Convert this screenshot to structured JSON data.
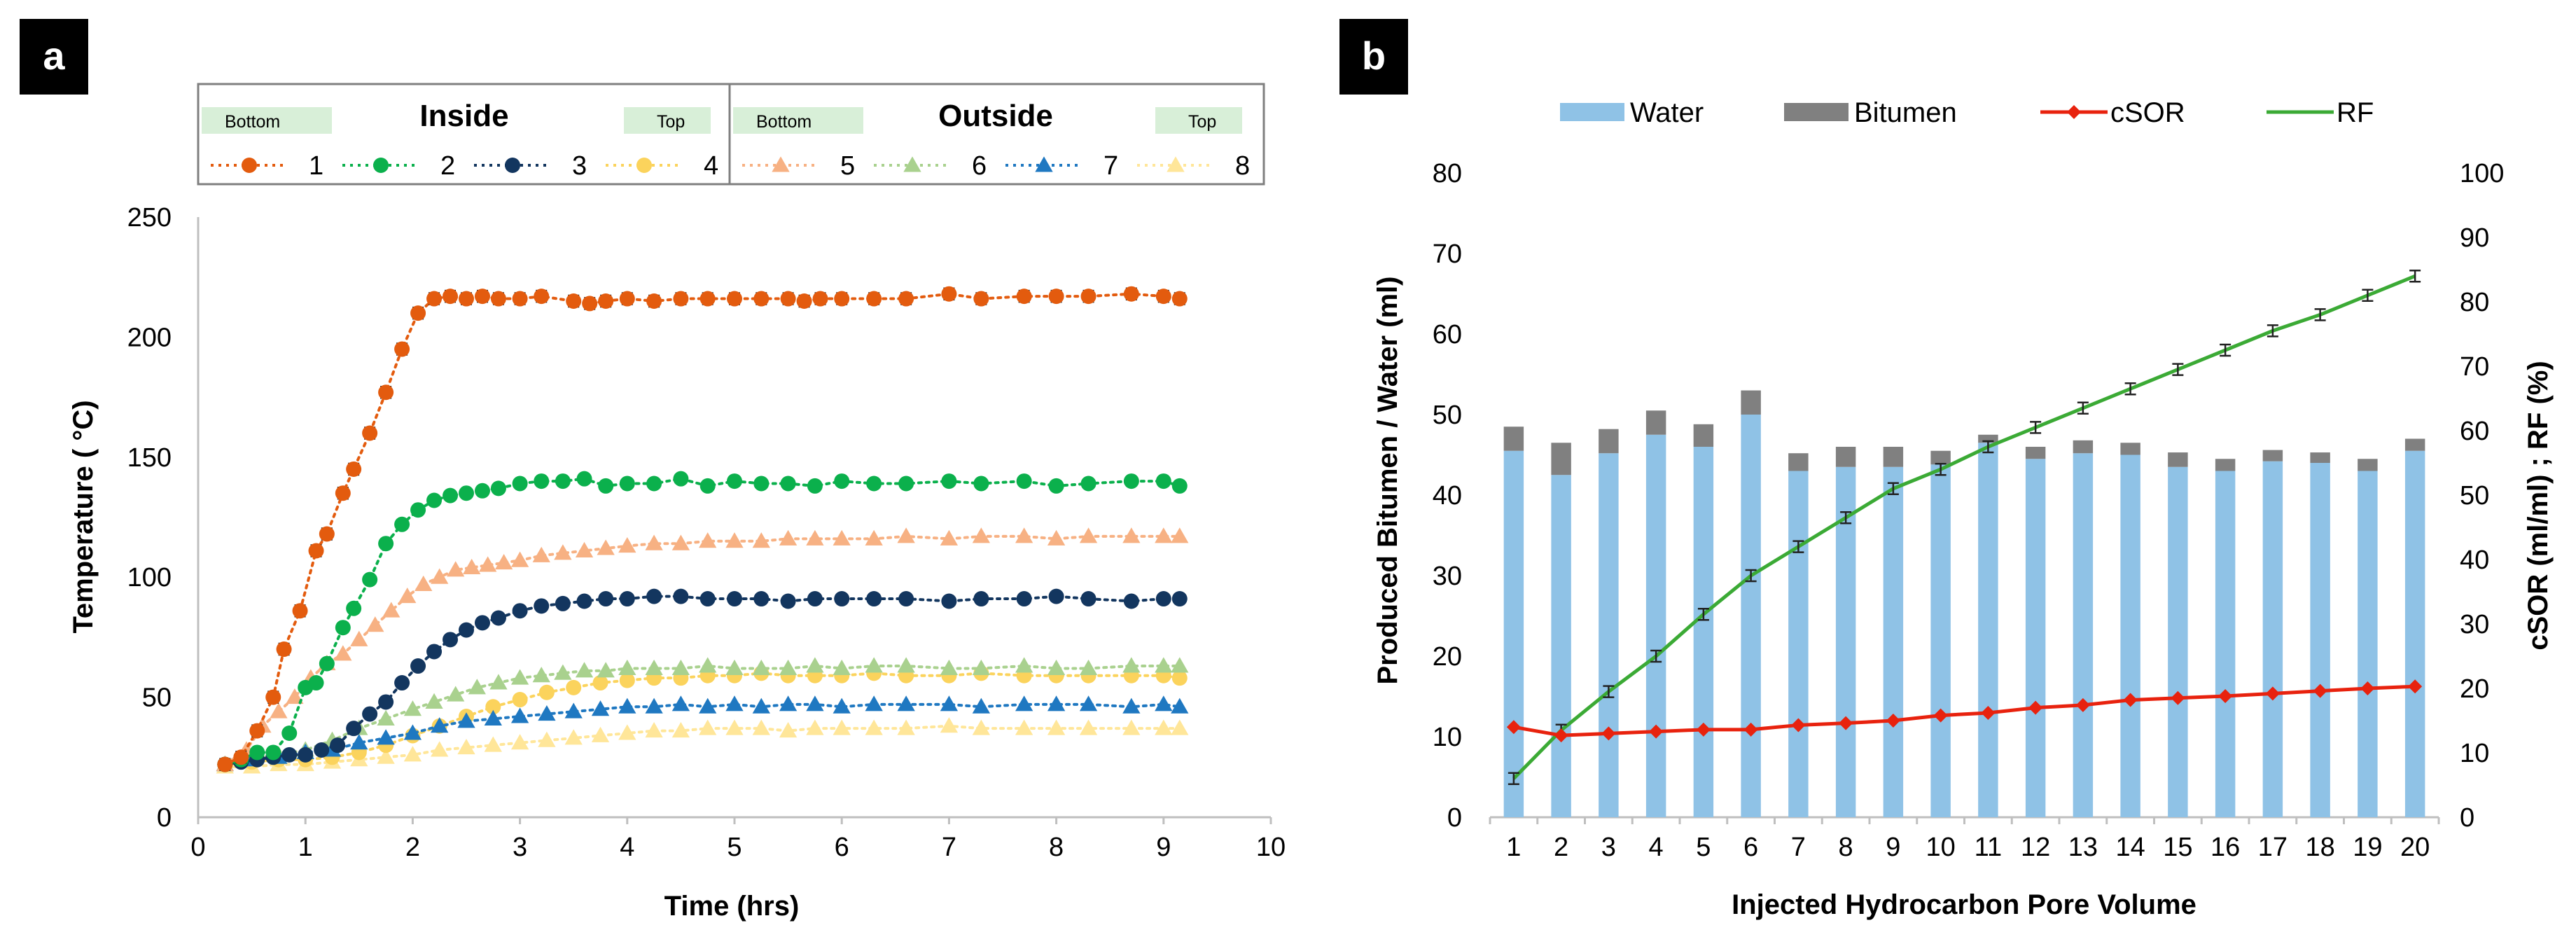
{
  "panels": [
    {
      "id": "a",
      "label": "a",
      "chart_data": {
        "type": "line",
        "xlabel": "Time (hrs)",
        "ylabel": "Temperature ( °C)",
        "xlim": [
          0,
          10
        ],
        "ylim": [
          0,
          250
        ],
        "xticks": [
          0,
          1,
          2,
          3,
          4,
          5,
          6,
          7,
          8,
          9,
          10
        ],
        "yticks": [
          0,
          50,
          100,
          150,
          200,
          250
        ],
        "grid": false,
        "legend": {
          "groups": [
            {
              "title": "Inside",
              "left_label": "Bottom",
              "right_label": "Top",
              "series_names": [
                "1",
                "2",
                "3",
                "4"
              ]
            },
            {
              "title": "Outside",
              "left_label": "Bottom",
              "right_label": "Top",
              "series_names": [
                "5",
                "6",
                "7",
                "8"
              ]
            }
          ]
        },
        "series": [
          {
            "name": "1",
            "marker": "circle",
            "color": "#E35B0E",
            "errorbars": true,
            "x": [
              0.25,
              0.4,
              0.55,
              0.7,
              0.8,
              0.95,
              1.1,
              1.2,
              1.35,
              1.45,
              1.6,
              1.75,
              1.9,
              2.05,
              2.2,
              2.35,
              2.5,
              2.65,
              2.8,
              3.0,
              3.2,
              3.5,
              3.65,
              3.8,
              4.0,
              4.25,
              4.5,
              4.75,
              5.0,
              5.25,
              5.5,
              5.65,
              5.8,
              6.0,
              6.3,
              6.6,
              7.0,
              7.3,
              7.7,
              8.0,
              8.3,
              8.7,
              9.0,
              9.15
            ],
            "y": [
              22,
              25,
              36,
              50,
              70,
              86,
              111,
              118,
              135,
              145,
              160,
              177,
              195,
              210,
              216,
              217,
              216,
              217,
              216,
              216,
              217,
              215,
              214,
              215,
              216,
              215,
              216,
              216,
              216,
              216,
              216,
              215,
              216,
              216,
              216,
              216,
              218,
              216,
              217,
              217,
              217,
              218,
              217,
              216
            ]
          },
          {
            "name": "2",
            "marker": "circle",
            "color": "#0BB04C",
            "errorbars": false,
            "x": [
              0.25,
              0.4,
              0.55,
              0.7,
              0.85,
              1.0,
              1.1,
              1.2,
              1.35,
              1.45,
              1.6,
              1.75,
              1.9,
              2.05,
              2.2,
              2.35,
              2.5,
              2.65,
              2.8,
              3.0,
              3.2,
              3.4,
              3.6,
              3.8,
              4.0,
              4.25,
              4.5,
              4.75,
              5.0,
              5.25,
              5.5,
              5.75,
              6.0,
              6.3,
              6.6,
              7.0,
              7.3,
              7.7,
              8.0,
              8.3,
              8.7,
              9.0,
              9.15
            ],
            "y": [
              22,
              24,
              27,
              27,
              35,
              54,
              56,
              64,
              79,
              87,
              99,
              114,
              122,
              128,
              132,
              134,
              135,
              136,
              137,
              139,
              140,
              140,
              141,
              138,
              139,
              139,
              141,
              138,
              140,
              139,
              139,
              138,
              140,
              139,
              139,
              140,
              139,
              140,
              138,
              139,
              140,
              140,
              138
            ]
          },
          {
            "name": "3",
            "marker": "circle",
            "color": "#13365F",
            "errorbars": false,
            "x": [
              0.25,
              0.4,
              0.55,
              0.7,
              0.85,
              1.0,
              1.15,
              1.3,
              1.45,
              1.6,
              1.75,
              1.9,
              2.05,
              2.2,
              2.35,
              2.5,
              2.65,
              2.8,
              3.0,
              3.2,
              3.4,
              3.6,
              3.8,
              4.0,
              4.25,
              4.5,
              4.75,
              5.0,
              5.25,
              5.5,
              5.75,
              6.0,
              6.3,
              6.6,
              7.0,
              7.3,
              7.7,
              8.0,
              8.3,
              8.7,
              9.0,
              9.15
            ],
            "y": [
              22,
              23,
              24,
              25,
              26,
              26,
              28,
              30,
              37,
              43,
              48,
              56,
              63,
              69,
              74,
              78,
              81,
              83,
              86,
              88,
              89,
              90,
              91,
              91,
              92,
              92,
              91,
              91,
              91,
              90,
              91,
              91,
              91,
              91,
              90,
              91,
              91,
              92,
              91,
              90,
              91,
              91
            ]
          },
          {
            "name": "4",
            "marker": "circle",
            "color": "#FBD35C",
            "errorbars": false,
            "x": [
              0.25,
              0.5,
              0.75,
              1.0,
              1.25,
              1.5,
              1.75,
              2.0,
              2.25,
              2.5,
              2.75,
              3.0,
              3.25,
              3.5,
              3.75,
              4.0,
              4.25,
              4.5,
              4.75,
              5.0,
              5.25,
              5.5,
              5.75,
              6.0,
              6.3,
              6.6,
              7.0,
              7.3,
              7.7,
              8.0,
              8.3,
              8.7,
              9.0,
              9.15
            ],
            "y": [
              22,
              23,
              24,
              24,
              25,
              27,
              30,
              34,
              38,
              42,
              46,
              49,
              52,
              54,
              56,
              57,
              58,
              58,
              59,
              59,
              60,
              59,
              59,
              59,
              60,
              59,
              59,
              60,
              59,
              59,
              59,
              59,
              59,
              58
            ]
          },
          {
            "name": "5",
            "marker": "triangle",
            "color": "#F7B183",
            "errorbars": false,
            "x": [
              0.25,
              0.45,
              0.6,
              0.75,
              0.9,
              1.05,
              1.2,
              1.35,
              1.5,
              1.65,
              1.8,
              1.95,
              2.1,
              2.25,
              2.4,
              2.55,
              2.7,
              2.85,
              3.0,
              3.2,
              3.4,
              3.6,
              3.8,
              4.0,
              4.25,
              4.5,
              4.75,
              5.0,
              5.25,
              5.5,
              5.75,
              6.0,
              6.3,
              6.6,
              7.0,
              7.3,
              7.7,
              8.0,
              8.3,
              8.7,
              9.0,
              9.15
            ],
            "y": [
              22,
              28,
              38,
              44,
              50,
              58,
              64,
              68,
              74,
              80,
              86,
              92,
              97,
              100,
              103,
              104,
              105,
              106,
              107,
              109,
              110,
              111,
              112,
              113,
              114,
              114,
              115,
              115,
              115,
              116,
              116,
              116,
              116,
              117,
              116,
              117,
              117,
              116,
              117,
              117,
              117,
              117
            ]
          },
          {
            "name": "6",
            "marker": "triangle",
            "color": "#A9D18E",
            "errorbars": false,
            "x": [
              0.25,
              0.5,
              0.75,
              1.0,
              1.25,
              1.5,
              1.75,
              2.0,
              2.2,
              2.4,
              2.6,
              2.8,
              3.0,
              3.2,
              3.4,
              3.6,
              3.8,
              4.0,
              4.25,
              4.5,
              4.75,
              5.0,
              5.25,
              5.5,
              5.75,
              6.0,
              6.3,
              6.6,
              7.0,
              7.3,
              7.7,
              8.0,
              8.3,
              8.7,
              9.0,
              9.15
            ],
            "y": [
              22,
              24,
              26,
              28,
              32,
              37,
              41,
              45,
              48,
              51,
              54,
              56,
              58,
              59,
              60,
              61,
              61,
              62,
              62,
              62,
              63,
              62,
              62,
              62,
              63,
              62,
              63,
              63,
              62,
              62,
              63,
              62,
              62,
              63,
              63,
              63
            ]
          },
          {
            "name": "7",
            "marker": "triangle",
            "color": "#1F78C1",
            "errorbars": false,
            "x": [
              0.25,
              0.5,
              0.75,
              1.0,
              1.25,
              1.5,
              1.75,
              2.0,
              2.25,
              2.5,
              2.75,
              3.0,
              3.25,
              3.5,
              3.75,
              4.0,
              4.25,
              4.5,
              4.75,
              5.0,
              5.25,
              5.5,
              5.75,
              6.0,
              6.3,
              6.6,
              7.0,
              7.3,
              7.7,
              8.0,
              8.3,
              8.7,
              9.0,
              9.15
            ],
            "y": [
              22,
              24,
              25,
              27,
              28,
              31,
              33,
              35,
              38,
              40,
              41,
              42,
              43,
              44,
              45,
              46,
              46,
              47,
              46,
              47,
              46,
              47,
              47,
              46,
              47,
              47,
              47,
              46,
              47,
              47,
              47,
              46,
              47,
              46
            ]
          },
          {
            "name": "8",
            "marker": "triangle",
            "color": "#FFE699",
            "errorbars": false,
            "x": [
              0.25,
              0.5,
              0.75,
              1.0,
              1.25,
              1.5,
              1.75,
              2.0,
              2.25,
              2.5,
              2.75,
              3.0,
              3.25,
              3.5,
              3.75,
              4.0,
              4.25,
              4.5,
              4.75,
              5.0,
              5.25,
              5.5,
              5.75,
              6.0,
              6.3,
              6.6,
              7.0,
              7.3,
              7.7,
              8.0,
              8.3,
              8.7,
              9.0,
              9.15
            ],
            "y": [
              21,
              21,
              22,
              22,
              23,
              24,
              25,
              26,
              28,
              29,
              30,
              31,
              32,
              33,
              34,
              35,
              36,
              36,
              37,
              37,
              37,
              36,
              37,
              37,
              37,
              37,
              38,
              37,
              37,
              37,
              37,
              37,
              37,
              37
            ]
          }
        ]
      }
    },
    {
      "id": "b",
      "label": "b",
      "chart_data": {
        "type": "bar",
        "xlabel": "Injected  Hydrocarbon  Pore Volume",
        "ylabel": "Produced Bitumen / Water  (ml)",
        "ylabel_right": "cSOR  (ml/ml) ;  RF  (%)",
        "ylim": [
          0,
          80
        ],
        "ylim_right": [
          0,
          100
        ],
        "yticks": [
          0,
          10,
          20,
          30,
          40,
          50,
          60,
          70,
          80
        ],
        "yticks_right": [
          0,
          10,
          20,
          30,
          40,
          50,
          60,
          70,
          80,
          90,
          100
        ],
        "grid": false,
        "legend_position": "top",
        "categories": [
          "1",
          "2",
          "3",
          "4",
          "5",
          "6",
          "7",
          "8",
          "9",
          "10",
          "11",
          "12",
          "13",
          "14",
          "15",
          "16",
          "17",
          "18",
          "19",
          "20"
        ],
        "series": [
          {
            "name": "Water",
            "kind": "bar-stacked",
            "axis": "left",
            "color": "#8FC2E6",
            "values": [
              45.5,
              42.5,
              45.2,
              47.5,
              46.0,
              50.0,
              43.0,
              43.5,
              43.5,
              43.8,
              46.5,
              44.5,
              45.2,
              45.0,
              43.5,
              43.0,
              44.2,
              44.0,
              43.0,
              45.5
            ]
          },
          {
            "name": "Bitumen",
            "kind": "bar-stacked",
            "axis": "left",
            "color": "#808080",
            "values": [
              3.0,
              4.0,
              3.0,
              3.0,
              2.8,
              3.0,
              2.2,
              2.5,
              2.5,
              1.7,
              1.0,
              1.5,
              1.6,
              1.5,
              1.8,
              1.5,
              1.4,
              1.3,
              1.5,
              1.5
            ]
          },
          {
            "name": "cSOR",
            "kind": "line",
            "axis": "right",
            "color": "#E8220E",
            "marker": "diamond",
            "values": [
              14,
              12.7,
              13,
              13.3,
              13.6,
              13.6,
              14.3,
              14.6,
              15,
              15.8,
              16.2,
              17,
              17.4,
              18.2,
              18.5,
              18.8,
              19.2,
              19.6,
              20,
              20.3
            ]
          },
          {
            "name": "RF",
            "kind": "line",
            "axis": "right",
            "color": "#3BAA35",
            "errorbars": true,
            "values": [
              6,
              13.5,
              19.5,
              25,
              31.5,
              37.5,
              42,
              46.5,
              51,
              54,
              57.5,
              60.5,
              63.5,
              66.5,
              69.5,
              72.5,
              75.5,
              78,
              81,
              84
            ]
          }
        ]
      }
    }
  ]
}
